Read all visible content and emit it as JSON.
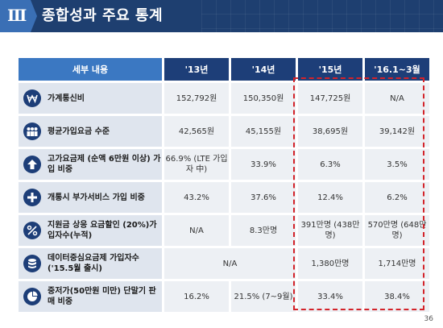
{
  "header": {
    "numeral": "Ⅲ",
    "title": "종합성과 주요 통계"
  },
  "table": {
    "columns": [
      "세부 내용",
      "'13년",
      "'14년",
      "'15년",
      "'16.1~3월"
    ],
    "rows": [
      {
        "icon": "won-icon",
        "label": "가계통신비",
        "values": [
          "152,792원",
          "150,350원",
          "147,725원",
          "N/A"
        ]
      },
      {
        "icon": "people-icon",
        "label": "평균가입요금 수준",
        "values": [
          "42,565원",
          "45,155원",
          "38,695원",
          "39,142원"
        ]
      },
      {
        "icon": "arrow-up-icon",
        "label": "고가요금제 (순액 6만원 이상) 가입 비중",
        "values": [
          "66.9% (LTE 가입자 中)",
          "33.9%",
          "6.3%",
          "3.5%"
        ]
      },
      {
        "icon": "plus-icon",
        "label": "개통시 부가서비스 가입 비중",
        "values": [
          "43.2%",
          "37.6%",
          "12.4%",
          "6.2%"
        ]
      },
      {
        "icon": "percent-icon",
        "label": "지원금 상응 요금할인 (20%)가입자수(누적)",
        "values": [
          "N/A",
          "8.3만명",
          "391만명 (438만명)",
          "570만명 (648만명)"
        ]
      },
      {
        "icon": "database-icon",
        "label": "데이터중심요금제 가입자수 ('15.5월 출시)",
        "merged": "N/A",
        "values": [
          "1,380만명",
          "1,714만명"
        ]
      },
      {
        "icon": "pie-chart-icon",
        "label": "중저가(50만원 미만) 단말기 판매 비중",
        "values": [
          "16.2%",
          "21.5% (7~9월)",
          "33.4%",
          "38.4%"
        ]
      }
    ]
  },
  "page_number": "36",
  "colors": {
    "header_bg": "#1e3f70",
    "column_header": "#1d3e78",
    "first_header": "#3b78c2",
    "highlight": "#d3232a"
  }
}
